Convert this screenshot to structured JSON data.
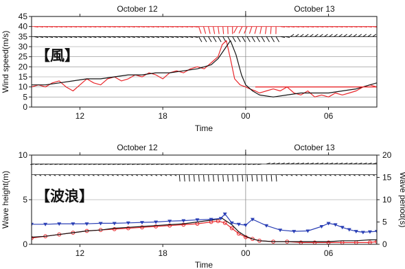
{
  "colors": {
    "observed": "#e8262a",
    "model": "#111111",
    "wave_period": "#2a3fb5",
    "grid": "#8a8a8a"
  },
  "chart_data": [
    {
      "type": "line",
      "panel_label": "【風】",
      "top_labels": [
        "October 12",
        "October 13"
      ],
      "xlabel": "Time",
      "ylabel": "Wind speed(m/s)",
      "x_ticks": [
        "12",
        "18",
        "00",
        "06"
      ],
      "y_ticks": [
        "0",
        "5",
        "10",
        "15",
        "20",
        "25",
        "30",
        "35",
        "40",
        "45"
      ],
      "xlim": [
        8.5,
        33.5
      ],
      "ylim": [
        0,
        45
      ],
      "grid": true,
      "day_boundary_hour": 24,
      "series": [
        {
          "key": "observed",
          "x": [
            8.5,
            9.0,
            9.5,
            10.0,
            10.5,
            11.0,
            11.5,
            12.0,
            12.5,
            13.0,
            13.5,
            14.0,
            14.5,
            15.0,
            15.5,
            16.0,
            16.5,
            17.0,
            17.5,
            18.0,
            18.5,
            19.0,
            19.5,
            20.0,
            20.5,
            21.0,
            21.5,
            22.0,
            22.3,
            22.6,
            22.9,
            23.2,
            23.6,
            24.0,
            24.3,
            24.7,
            25.0,
            25.5,
            26.0,
            26.5,
            27.0,
            27.5,
            28.0,
            28.5,
            29.0,
            29.5,
            30.0,
            30.5,
            31.0,
            31.5,
            32.0,
            32.5,
            33.0,
            33.5
          ],
          "y": [
            10,
            11,
            10,
            12,
            13,
            10,
            8,
            11,
            14,
            12,
            11,
            14,
            15,
            13,
            14,
            16,
            15,
            17,
            16,
            14,
            17,
            18,
            17,
            19,
            20,
            19,
            22,
            25,
            31,
            33,
            24,
            14,
            11,
            10,
            9,
            8,
            7,
            8,
            9,
            8,
            10,
            7,
            6,
            8,
            5,
            6,
            5,
            7,
            6,
            7,
            8,
            10,
            11,
            10
          ]
        },
        {
          "key": "model",
          "x": [
            8.5,
            9.5,
            10.5,
            11.5,
            12.5,
            13.5,
            14.5,
            15.5,
            16.5,
            17.5,
            18.5,
            19.5,
            20.5,
            21.5,
            22.0,
            22.5,
            22.9,
            23.3,
            23.7,
            24.0,
            24.5,
            25.0,
            26.0,
            27.0,
            28.0,
            29.0,
            30.0,
            31.0,
            32.0,
            33.0,
            33.5
          ],
          "y": [
            11,
            11,
            12,
            13,
            14,
            14,
            15,
            16,
            16,
            17,
            17,
            18,
            19,
            21,
            24,
            29,
            33,
            26,
            16,
            11,
            8,
            6,
            5,
            6,
            7,
            7,
            7,
            8,
            9,
            11,
            12
          ]
        },
        {
          "key": "observed-flat",
          "x": [
            24.7,
            33.5
          ],
          "y": [
            10,
            10
          ]
        }
      ]
    },
    {
      "type": "line",
      "panel_label": "【波浪】",
      "top_labels": [
        "October 12",
        "October 13"
      ],
      "xlabel": "Time",
      "ylabel": "Wave height(m)",
      "ylabel_right": "Wave period(s)",
      "x_ticks": [
        "12",
        "18",
        "00",
        "06"
      ],
      "y_ticks": [
        "0",
        "5",
        "10"
      ],
      "y_ticks_right": [
        "0",
        "5",
        "10",
        "15",
        "20"
      ],
      "xlim": [
        8.5,
        33.5
      ],
      "ylim": [
        0,
        10
      ],
      "ylim_right": [
        0,
        20
      ],
      "grid": true,
      "day_boundary_hour": 24,
      "series": [
        {
          "key": "observed",
          "axis": "left",
          "x": [
            8.5,
            9.5,
            10.5,
            11.5,
            12.5,
            13.5,
            14.5,
            15.5,
            16.5,
            17.5,
            18.5,
            19.5,
            20.5,
            21.5,
            22.0,
            22.5,
            23.0,
            23.5,
            24.0,
            24.5,
            25.0,
            26.0,
            27.0,
            28.0,
            29.0,
            30.0,
            31.0,
            32.0,
            33.0,
            33.5
          ],
          "y": [
            0.7,
            0.9,
            1.1,
            1.3,
            1.5,
            1.6,
            1.7,
            1.8,
            1.9,
            2.0,
            2.1,
            2.2,
            2.3,
            2.5,
            2.6,
            2.4,
            1.8,
            1.2,
            0.8,
            0.6,
            0.4,
            0.3,
            0.3,
            0.2,
            0.2,
            0.2,
            0.2,
            0.2,
            0.2,
            0.3
          ]
        },
        {
          "key": "model",
          "axis": "left",
          "x": [
            8.5,
            9.5,
            10.5,
            11.5,
            12.5,
            13.5,
            14.5,
            15.5,
            16.5,
            17.5,
            18.5,
            19.5,
            20.5,
            21.5,
            22.3,
            23.0,
            23.5,
            24.0,
            24.5,
            25.0,
            26.0,
            27.0,
            28.0,
            29.0,
            30.0,
            31.0,
            32.0,
            33.0,
            33.5
          ],
          "y": [
            0.8,
            0.9,
            1.1,
            1.3,
            1.5,
            1.6,
            1.8,
            1.9,
            2.0,
            2.1,
            2.2,
            2.3,
            2.5,
            2.7,
            2.9,
            2.2,
            1.4,
            0.9,
            0.6,
            0.4,
            0.3,
            0.3,
            0.3,
            0.3,
            0.3,
            0.4,
            0.4,
            0.5,
            0.5
          ]
        },
        {
          "key": "wave_period",
          "axis": "right",
          "x": [
            8.5,
            9.5,
            10.5,
            11.5,
            12.5,
            13.5,
            14.5,
            15.5,
            16.5,
            17.5,
            18.5,
            19.5,
            20.5,
            21.5,
            22.2,
            22.5,
            23.0,
            23.5,
            24.0,
            24.5,
            25.5,
            26.5,
            27.5,
            28.5,
            29.5,
            30.0,
            30.5,
            31.0,
            31.5,
            32.0,
            32.5,
            33.0,
            33.5
          ],
          "y": [
            4.5,
            4.5,
            4.6,
            4.6,
            4.6,
            4.7,
            4.7,
            4.8,
            4.9,
            5.0,
            5.2,
            5.3,
            5.5,
            5.6,
            5.8,
            6.8,
            4.8,
            4.5,
            4.3,
            5.6,
            4.2,
            3.2,
            2.9,
            3.0,
            4.0,
            4.7,
            4.4,
            3.8,
            3.3,
            2.9,
            2.7,
            2.8,
            2.9
          ]
        }
      ]
    }
  ]
}
